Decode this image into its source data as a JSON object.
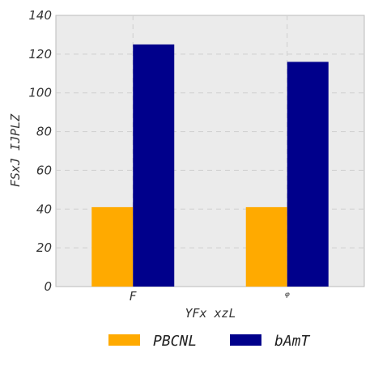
{
  "chart_data": {
    "type": "bar",
    "categories": [
      "F",
      "ᵠ"
    ],
    "series": [
      {
        "name": "PBCNL",
        "values": [
          41,
          41
        ],
        "color": "#FFAA00"
      },
      {
        "name": "bAmT",
        "values": [
          125,
          116
        ],
        "color": "#00008B"
      }
    ],
    "xlabel": "YFx xzL",
    "ylabel": "FSxJ IJPLZ",
    "ylim": [
      0,
      140
    ],
    "yticks": [
      0,
      20,
      40,
      60,
      80,
      100,
      120,
      140
    ],
    "grid": true,
    "legend_position": "bottom-center",
    "plot_background": "#EBEBEB"
  }
}
